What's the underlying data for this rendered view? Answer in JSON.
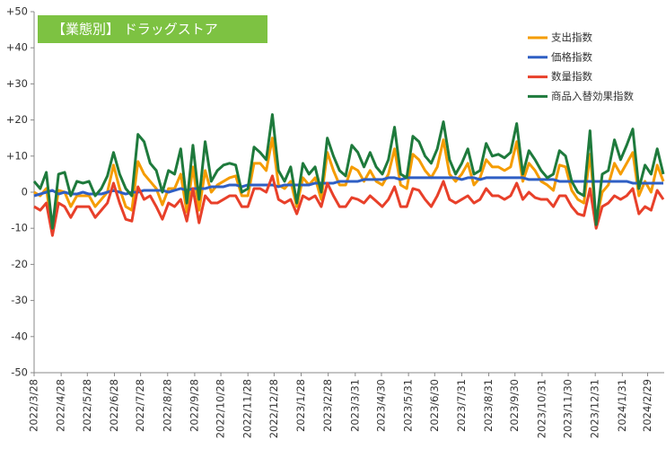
{
  "chart_data": {
    "type": "line",
    "title": "【業態別】 ドラッグストア",
    "title_color": "#7dc242",
    "legend": "upper right",
    "grid": false,
    "x": [
      "2022/3/28",
      "2022/4/4",
      "2022/4/11",
      "2022/4/18",
      "2022/4/25",
      "2022/5/2",
      "2022/5/9",
      "2022/5/16",
      "2022/5/23",
      "2022/5/30",
      "2022/6/6",
      "2022/6/13",
      "2022/6/20",
      "2022/6/27",
      "2022/7/4",
      "2022/7/11",
      "2022/7/18",
      "2022/7/25",
      "2022/8/1",
      "2022/8/8",
      "2022/8/15",
      "2022/8/22",
      "2022/8/29",
      "2022/9/5",
      "2022/9/12",
      "2022/9/19",
      "2022/9/26",
      "2022/10/3",
      "2022/10/10",
      "2022/10/17",
      "2022/10/24",
      "2022/10/31",
      "2022/11/7",
      "2022/11/14",
      "2022/11/21",
      "2022/11/28",
      "2022/12/5",
      "2022/12/12",
      "2022/12/19",
      "2022/12/26",
      "2023/1/2",
      "2023/1/9",
      "2023/1/16",
      "2023/1/23",
      "2023/1/30",
      "2023/2/6",
      "2023/2/13",
      "2023/2/20",
      "2023/2/27",
      "2023/3/6",
      "2023/3/13",
      "2023/3/20",
      "2023/3/27",
      "2023/4/3",
      "2023/4/10",
      "2023/4/17",
      "2023/4/24",
      "2023/5/1",
      "2023/5/8",
      "2023/5/15",
      "2023/5/22",
      "2023/5/29",
      "2023/6/5",
      "2023/6/12",
      "2023/6/19",
      "2023/6/26",
      "2023/7/3",
      "2023/7/10",
      "2023/7/17",
      "2023/7/24",
      "2023/7/31",
      "2023/8/7",
      "2023/8/14",
      "2023/8/21",
      "2023/8/28",
      "2023/9/4",
      "2023/9/11",
      "2023/9/18",
      "2023/9/25",
      "2023/10/2",
      "2023/10/9",
      "2023/10/16",
      "2023/10/23",
      "2023/10/30",
      "2023/11/6",
      "2023/11/13",
      "2023/11/20",
      "2023/11/27",
      "2023/12/4",
      "2023/12/11",
      "2023/12/18",
      "2023/12/25",
      "2024/1/1",
      "2024/1/8",
      "2024/1/15",
      "2024/1/22",
      "2024/1/29",
      "2024/2/5",
      "2024/2/12",
      "2024/2/19",
      "2024/2/26",
      "2024/3/4",
      "2024/3/11",
      "2024/3/18"
    ],
    "xlim": [
      "2022/3/28",
      "2024/3/19"
    ],
    "xticks": [
      "2022/3/28",
      "2022/4/28",
      "2022/5/28",
      "2022/6/28",
      "2022/7/28",
      "2022/8/28",
      "2022/9/28",
      "2022/10/28",
      "2022/11/28",
      "2022/12/28",
      "2023/1/28",
      "2023/2/28",
      "2023/3/31",
      "2023/4/30",
      "2023/5/31",
      "2023/6/30",
      "2023/7/31",
      "2023/8/31",
      "2023/9/30",
      "2023/10/31",
      "2023/11/30",
      "2023/12/31",
      "2024/1/31",
      "2024/2/29"
    ],
    "ylim": [
      -50,
      50
    ],
    "yticks": [
      {
        "value": 50,
        "label": "+50"
      },
      {
        "value": 40,
        "label": "+40"
      },
      {
        "value": 30,
        "label": "+30"
      },
      {
        "value": 20,
        "label": "+20"
      },
      {
        "value": 10,
        "label": "+10"
      },
      0,
      -10,
      -20,
      -30,
      -40,
      -50
    ],
    "series": [
      {
        "name": "支出指数",
        "color": "#f59c00",
        "values": [
          0,
          -1,
          1,
          -10.5,
          0.5,
          0,
          -4,
          -1,
          -1,
          -1,
          -4,
          -2,
          0,
          7.5,
          1,
          -4,
          -5,
          8.5,
          5,
          3,
          1,
          -3.5,
          1,
          1,
          5,
          -5.5,
          7,
          -5,
          6,
          0,
          2,
          3,
          4,
          4.5,
          -1,
          -1,
          8,
          8,
          6,
          15,
          2,
          1,
          3,
          -4,
          4,
          2,
          4,
          -2,
          11,
          6,
          2,
          2,
          7,
          6,
          3,
          6,
          3,
          2,
          5,
          12,
          2,
          1,
          10.5,
          9,
          6,
          4,
          7,
          14.5,
          5,
          3,
          5,
          8,
          2,
          4,
          9,
          7,
          7,
          6,
          7,
          14,
          3,
          8,
          6,
          3,
          2,
          0.5,
          7.5,
          7,
          0.5,
          -2,
          -3,
          10.5,
          -8,
          0,
          2,
          8,
          5,
          8,
          11,
          -1,
          3,
          0,
          7.5,
          3
        ]
      },
      {
        "name": "価格指数",
        "color": "#2f5fc4",
        "values": [
          -1,
          -0.5,
          0,
          0.5,
          -0.5,
          0,
          -0.5,
          -0.5,
          0,
          -0.5,
          -0.5,
          -0.5,
          0,
          0.5,
          0,
          -0.5,
          0,
          0,
          0.5,
          0.5,
          0.5,
          0.5,
          0,
          0.5,
          1,
          0.5,
          1,
          1,
          1,
          1.5,
          1.5,
          1.5,
          2,
          2,
          1.5,
          2,
          2,
          2,
          2,
          2,
          1.5,
          2,
          2,
          2,
          2,
          2,
          2.5,
          2.5,
          2.5,
          2.5,
          3,
          3,
          3,
          3,
          3.5,
          3.5,
          3.5,
          3.5,
          4,
          4,
          3.5,
          4,
          4,
          4,
          4,
          4,
          4,
          4,
          4,
          4,
          3.5,
          4,
          4,
          3.5,
          4,
          4,
          4,
          4,
          4,
          4,
          4,
          3.5,
          3.5,
          3.5,
          3.5,
          3.5,
          3,
          3,
          3,
          3,
          3,
          3,
          3,
          3,
          3,
          3,
          3,
          3,
          2.5,
          2.5,
          2.5,
          2.5,
          2.5,
          2.5
        ]
      },
      {
        "name": "数量指数",
        "color": "#e8402a",
        "values": [
          -4,
          -5,
          -3,
          -12,
          -3,
          -4,
          -7,
          -4,
          -4,
          -4,
          -7,
          -5,
          -3,
          2.5,
          -3,
          -7.5,
          -8,
          1.5,
          -2,
          -1,
          -4,
          -7.5,
          -3,
          -4,
          -2,
          -8,
          1,
          -8.5,
          -1,
          -3,
          -3,
          -2,
          -1,
          -1,
          -4,
          -4,
          1,
          1,
          0,
          4.5,
          -2,
          -3,
          -2,
          -6,
          -1,
          -2,
          -1,
          -4,
          2.5,
          -1,
          -4,
          -4,
          -1.5,
          -2,
          -3,
          -1,
          -2.5,
          -4,
          -2,
          1.5,
          -4,
          -4,
          1,
          0.5,
          -2,
          -4,
          -1,
          3,
          -2,
          -3,
          -2,
          -1,
          -3,
          -2,
          1,
          -1,
          -1,
          -2,
          -1,
          2.5,
          -2,
          0,
          -1.5,
          -2,
          -2,
          -4,
          -1,
          -1,
          -4,
          -6,
          -6.5,
          1,
          -10,
          -4,
          -3,
          -1,
          -2,
          -1,
          1,
          -6,
          -4,
          -5,
          0.5,
          -2
        ]
      },
      {
        "name": "商品入替効果指数",
        "color": "#1e7a3c",
        "values": [
          3,
          1,
          5.5,
          -10,
          5,
          5.5,
          -1,
          3,
          2.5,
          3,
          -1,
          1,
          4.5,
          11,
          5,
          1,
          -1,
          16,
          14,
          8,
          6,
          0,
          6,
          5,
          12,
          -3,
          13,
          -2,
          14,
          3,
          6,
          7.5,
          8,
          7.5,
          0,
          1,
          12.5,
          11,
          9,
          21.5,
          6,
          3,
          7,
          -3,
          8,
          5,
          7,
          0,
          15,
          10,
          6,
          4.5,
          13,
          11,
          7,
          11,
          7,
          5,
          9,
          18,
          5,
          4,
          15.5,
          14,
          10,
          8,
          12,
          19.5,
          9,
          5,
          8,
          12,
          5,
          6,
          13.5,
          10,
          10.5,
          9.5,
          11,
          19,
          5,
          11.5,
          9,
          6,
          4,
          5,
          11.5,
          10,
          3,
          0,
          -1,
          17,
          -9,
          5,
          6,
          14.5,
          9,
          13,
          17.5,
          1,
          7.5,
          5,
          12,
          5
        ]
      }
    ]
  }
}
